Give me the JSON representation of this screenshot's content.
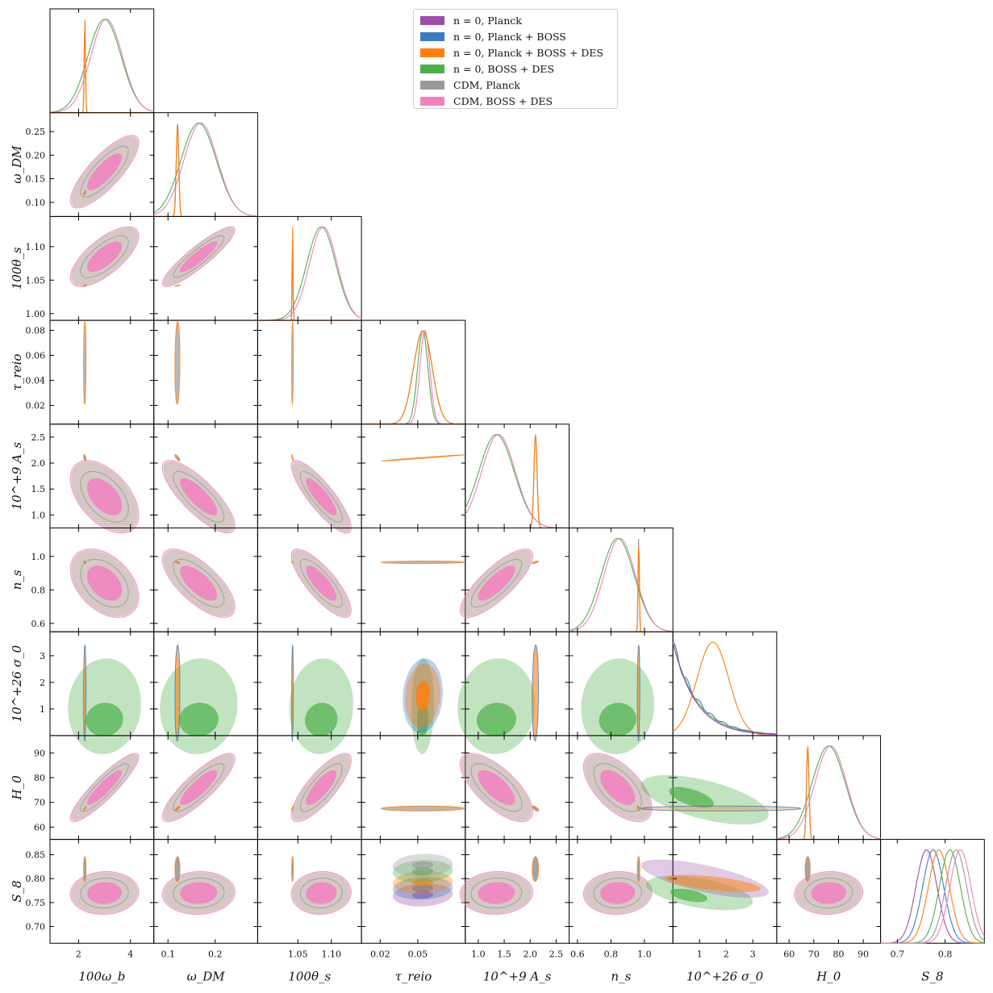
{
  "chart_data": {
    "type": "corner",
    "title": "",
    "parameters": [
      {
        "name": "omega_b",
        "label": "100ω_b",
        "range": [
          0.9,
          4.9
        ],
        "ticks": [
          2,
          4
        ],
        "tick_labels": [
          "2",
          "4"
        ],
        "best": {
          "planck": 2.24,
          "broad": 3.0
        }
      },
      {
        "name": "omega_DM",
        "label": "ω_DM",
        "range": [
          0.07,
          0.29
        ],
        "ticks": [
          0.1,
          0.2
        ],
        "tick_labels": [
          "0.1",
          "0.2"
        ],
        "y_ticks": [
          0.1,
          0.15,
          0.2,
          0.25
        ],
        "y_tick_labels": [
          "0.10",
          "0.15",
          "0.20",
          "0.25"
        ],
        "best": {
          "planck": 0.12,
          "broad": 0.165
        }
      },
      {
        "name": "theta_s",
        "label": "100θ_s",
        "range": [
          0.99,
          1.145
        ],
        "ticks": [
          1.05,
          1.1
        ],
        "tick_labels": [
          "1.05",
          "1.10"
        ],
        "y_ticks": [
          1.0,
          1.05,
          1.1
        ],
        "y_tick_labels": [
          "1.00",
          "1.05",
          "1.10"
        ],
        "best": {
          "planck": 1.042,
          "broad": 1.085
        }
      },
      {
        "name": "tau_reio",
        "label": "τ_reio",
        "range": [
          0.005,
          0.088
        ],
        "ticks": [
          0.02,
          0.05
        ],
        "tick_labels": [
          "0.02",
          "0.05"
        ],
        "y_ticks": [
          0.02,
          0.04,
          0.06,
          0.08
        ],
        "y_tick_labels": [
          "0.02",
          "0.04",
          "0.06",
          "0.08"
        ],
        "best": {
          "planck": 0.054,
          "broad": 0.054
        }
      },
      {
        "name": "A_s",
        "label": "10^+9 A_s",
        "range": [
          0.75,
          2.75
        ],
        "ticks": [
          1.0,
          1.5,
          2.0,
          2.5
        ],
        "tick_labels": [
          "1.0",
          "1.5",
          "2.0",
          "2.5"
        ],
        "y_ticks": [
          1.0,
          1.5,
          2.0,
          2.5
        ],
        "y_tick_labels": [
          "1.0",
          "1.5",
          "2.0",
          "2.5"
        ],
        "best": {
          "planck": 2.1,
          "broad": 1.35
        }
      },
      {
        "name": "n_s",
        "label": "n_s",
        "range": [
          0.55,
          1.17
        ],
        "ticks": [
          0.6,
          0.8,
          1.0
        ],
        "tick_labels": [
          "0.6",
          "0.8",
          "1.0"
        ],
        "y_ticks": [
          0.6,
          0.8,
          1.0
        ],
        "y_tick_labels": [
          "0.6",
          "0.8",
          "1.0"
        ],
        "best": {
          "planck": 0.965,
          "broad": 0.84
        }
      },
      {
        "name": "sigma_0",
        "label": "10^+26 σ_0",
        "range": [
          0.0,
          3.9
        ],
        "ticks": [
          1,
          2,
          3
        ],
        "tick_labels": [
          "1",
          "2",
          "3"
        ],
        "y_ticks": [
          1,
          2,
          3
        ],
        "y_tick_labels": [
          "1",
          "2",
          "3"
        ],
        "best": {
          "planck": 0.5,
          "broad": 0.5
        }
      },
      {
        "name": "H_0",
        "label": "H_0",
        "range": [
          55,
          97
        ],
        "ticks": [
          60,
          70,
          80,
          90
        ],
        "tick_labels": [
          "60",
          "70",
          "80",
          "90"
        ],
        "y_ticks": [
          60,
          70,
          80,
          90
        ],
        "y_tick_labels": [
          "60",
          "70",
          "80",
          "90"
        ],
        "best": {
          "planck": 67.5,
          "broad": 76
        }
      },
      {
        "name": "S_8",
        "label": "S_8",
        "range": [
          0.665,
          0.882
        ],
        "ticks": [
          0.7,
          0.8
        ],
        "tick_labels": [
          "0.7",
          "0.8"
        ],
        "y_ticks": [
          0.7,
          0.75,
          0.8,
          0.85
        ],
        "y_tick_labels": [
          "0.70",
          "0.75",
          "0.80",
          "0.85"
        ],
        "best": {
          "planck": 0.82,
          "broad": 0.77
        }
      }
    ],
    "series": [
      {
        "name": "n = 0, Planck",
        "color": "#9b4fa4",
        "kind": "planck"
      },
      {
        "name": "n = 0, Planck + BOSS",
        "color": "#3a7cbe",
        "kind": "planck"
      },
      {
        "name": "n = 0, Planck + BOSS + DES",
        "color": "#ff7f0e",
        "kind": "planck"
      },
      {
        "name": "n = 0, BOSS + DES",
        "color": "#4daf4a",
        "kind": "broad"
      },
      {
        "name": "CDM, Planck",
        "color": "#999999",
        "kind": "planck"
      },
      {
        "name": "CDM, BOSS + DES",
        "color": "#f280c0",
        "kind": "broad"
      }
    ],
    "legend_position": "top-right",
    "sigma0_peaks": {
      "n = 0, Planck + BOSS + DES": 1.5,
      "others": 0.1
    },
    "s8_peaks": [
      0.761,
      0.775,
      0.787,
      0.81,
      0.823,
      0.832
    ]
  },
  "legend": {
    "items": [
      {
        "label": "n = 0, Planck",
        "color": "#9b4fa4"
      },
      {
        "label": "n = 0, Planck + BOSS",
        "color": "#3a7cbe"
      },
      {
        "label": "n = 0, Planck + BOSS + DES",
        "color": "#ff7f0e"
      },
      {
        "label": "n = 0, BOSS + DES",
        "color": "#4daf4a"
      },
      {
        "label": "CDM, Planck",
        "color": "#999999"
      },
      {
        "label": "CDM, BOSS + DES",
        "color": "#f280c0"
      }
    ]
  }
}
